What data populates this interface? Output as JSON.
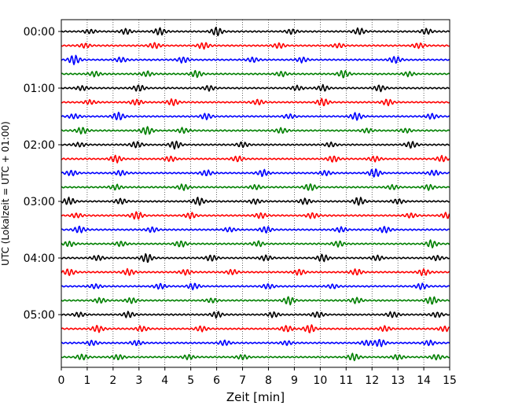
{
  "chart_data": {
    "type": "line",
    "title": "",
    "xlabel": "Zeit  [min]",
    "ylabel": "UTC (Lokalzeit = UTC + 01:00)",
    "xlim": [
      0,
      15
    ],
    "x_ticks": [
      "0",
      "1",
      "2",
      "3",
      "4",
      "5",
      "6",
      "7",
      "8",
      "9",
      "10",
      "11",
      "12",
      "13",
      "14",
      "15"
    ],
    "y_tick_labels": [
      "00:00",
      "01:00",
      "02:00",
      "03:00",
      "04:00",
      "05:00"
    ],
    "grid": "vertical dotted lines at each minute",
    "trace_interval_minutes": 15,
    "trace_count": 24,
    "trace_colors": [
      "#000000",
      "#ff0000",
      "#0000ff",
      "#008000"
    ],
    "traces": [
      {
        "start": "00:00",
        "color": "#000000",
        "bursts": [
          [
            1.1,
            0.3
          ],
          [
            2.5,
            0.35
          ],
          [
            3.8,
            0.5
          ],
          [
            6.0,
            0.6
          ],
          [
            8.9,
            0.35
          ],
          [
            11.5,
            0.45
          ],
          [
            14.1,
            0.4
          ]
        ]
      },
      {
        "start": "00:15",
        "color": "#ff0000",
        "bursts": [
          [
            0.9,
            0.3
          ],
          [
            3.6,
            0.4
          ],
          [
            5.5,
            0.45
          ],
          [
            8.4,
            0.35
          ],
          [
            10.7,
            0.3
          ],
          [
            13.8,
            0.35
          ]
        ]
      },
      {
        "start": "00:30",
        "color": "#0000ff",
        "bursts": [
          [
            0.5,
            0.65
          ],
          [
            2.3,
            0.35
          ],
          [
            4.7,
            0.4
          ],
          [
            7.4,
            0.35
          ],
          [
            9.3,
            0.35
          ],
          [
            12.9,
            0.45
          ]
        ]
      },
      {
        "start": "00:45",
        "color": "#008000",
        "bursts": [
          [
            1.3,
            0.35
          ],
          [
            3.3,
            0.35
          ],
          [
            5.2,
            0.5
          ],
          [
            8.5,
            0.35
          ],
          [
            10.9,
            0.5
          ],
          [
            13.4,
            0.3
          ]
        ]
      },
      {
        "start": "01:00",
        "color": "#000000",
        "bursts": [
          [
            0.8,
            0.3
          ],
          [
            3.0,
            0.45
          ],
          [
            5.7,
            0.35
          ],
          [
            9.1,
            0.3
          ],
          [
            10.1,
            0.4
          ],
          [
            12.3,
            0.45
          ]
        ]
      },
      {
        "start": "01:15",
        "color": "#ff0000",
        "bursts": [
          [
            1.1,
            0.3
          ],
          [
            2.9,
            0.4
          ],
          [
            4.3,
            0.45
          ],
          [
            7.6,
            0.35
          ],
          [
            10.1,
            0.55
          ],
          [
            12.6,
            0.4
          ]
        ]
      },
      {
        "start": "01:30",
        "color": "#0000ff",
        "bursts": [
          [
            0.5,
            0.3
          ],
          [
            2.2,
            0.55
          ],
          [
            5.6,
            0.4
          ],
          [
            8.8,
            0.3
          ],
          [
            11.4,
            0.5
          ],
          [
            14.3,
            0.35
          ]
        ]
      },
      {
        "start": "01:45",
        "color": "#008000",
        "bursts": [
          [
            0.8,
            0.45
          ],
          [
            3.3,
            0.6
          ],
          [
            4.7,
            0.35
          ],
          [
            8.5,
            0.35
          ],
          [
            11.8,
            0.3
          ],
          [
            13.3,
            0.3
          ]
        ]
      },
      {
        "start": "02:00",
        "color": "#000000",
        "bursts": [
          [
            0.7,
            0.3
          ],
          [
            2.9,
            0.45
          ],
          [
            4.4,
            0.55
          ],
          [
            7.0,
            0.35
          ],
          [
            10.4,
            0.3
          ],
          [
            13.5,
            0.45
          ]
        ]
      },
      {
        "start": "02:15",
        "color": "#ff0000",
        "bursts": [
          [
            2.1,
            0.5
          ],
          [
            4.2,
            0.35
          ],
          [
            6.8,
            0.4
          ],
          [
            10.5,
            0.45
          ],
          [
            12.1,
            0.35
          ],
          [
            14.7,
            0.4
          ]
        ]
      },
      {
        "start": "02:30",
        "color": "#0000ff",
        "bursts": [
          [
            0.4,
            0.4
          ],
          [
            2.3,
            0.35
          ],
          [
            5.6,
            0.4
          ],
          [
            7.8,
            0.45
          ],
          [
            10.2,
            0.35
          ],
          [
            12.1,
            0.6
          ],
          [
            14.4,
            0.35
          ]
        ]
      },
      {
        "start": "02:45",
        "color": "#008000",
        "bursts": [
          [
            2.1,
            0.35
          ],
          [
            4.7,
            0.4
          ],
          [
            7.5,
            0.3
          ],
          [
            9.6,
            0.5
          ],
          [
            12.8,
            0.3
          ],
          [
            14.2,
            0.35
          ]
        ]
      },
      {
        "start": "03:00",
        "color": "#000000",
        "bursts": [
          [
            0.3,
            0.5
          ],
          [
            2.3,
            0.4
          ],
          [
            5.3,
            0.55
          ],
          [
            7.5,
            0.35
          ],
          [
            9.4,
            0.4
          ],
          [
            11.5,
            0.55
          ],
          [
            13.0,
            0.35
          ]
        ]
      },
      {
        "start": "03:15",
        "color": "#ff0000",
        "bursts": [
          [
            0.6,
            0.3
          ],
          [
            2.9,
            0.55
          ],
          [
            5.0,
            0.4
          ],
          [
            7.7,
            0.35
          ],
          [
            9.7,
            0.4
          ],
          [
            13.5,
            0.35
          ],
          [
            14.9,
            0.4
          ]
        ]
      },
      {
        "start": "03:30",
        "color": "#0000ff",
        "bursts": [
          [
            0.7,
            0.45
          ],
          [
            3.5,
            0.35
          ],
          [
            6.5,
            0.3
          ],
          [
            7.9,
            0.45
          ],
          [
            10.8,
            0.35
          ],
          [
            12.5,
            0.4
          ]
        ]
      },
      {
        "start": "03:45",
        "color": "#008000",
        "bursts": [
          [
            0.3,
            0.35
          ],
          [
            2.3,
            0.35
          ],
          [
            4.6,
            0.45
          ],
          [
            7.6,
            0.35
          ],
          [
            10.7,
            0.4
          ],
          [
            14.3,
            0.5
          ]
        ]
      },
      {
        "start": "04:00",
        "color": "#000000",
        "bursts": [
          [
            1.4,
            0.35
          ],
          [
            3.3,
            0.6
          ],
          [
            5.8,
            0.4
          ],
          [
            7.9,
            0.35
          ],
          [
            10.1,
            0.5
          ],
          [
            12.2,
            0.35
          ],
          [
            14.5,
            0.35
          ]
        ]
      },
      {
        "start": "04:15",
        "color": "#ff0000",
        "bursts": [
          [
            0.3,
            0.45
          ],
          [
            2.6,
            0.45
          ],
          [
            4.8,
            0.35
          ],
          [
            6.6,
            0.35
          ],
          [
            9.2,
            0.4
          ],
          [
            11.4,
            0.4
          ],
          [
            14.0,
            0.45
          ]
        ]
      },
      {
        "start": "04:30",
        "color": "#0000ff",
        "bursts": [
          [
            1.3,
            0.3
          ],
          [
            3.8,
            0.35
          ],
          [
            5.1,
            0.4
          ],
          [
            8.0,
            0.35
          ],
          [
            10.5,
            0.3
          ],
          [
            13.9,
            0.4
          ]
        ]
      },
      {
        "start": "04:45",
        "color": "#008000",
        "bursts": [
          [
            1.5,
            0.35
          ],
          [
            2.7,
            0.35
          ],
          [
            5.8,
            0.3
          ],
          [
            8.8,
            0.55
          ],
          [
            11.4,
            0.4
          ],
          [
            14.3,
            0.55
          ]
        ]
      },
      {
        "start": "05:00",
        "color": "#000000",
        "bursts": [
          [
            0.7,
            0.3
          ],
          [
            2.6,
            0.4
          ],
          [
            6.0,
            0.4
          ],
          [
            8.2,
            0.35
          ],
          [
            9.9,
            0.4
          ],
          [
            12.8,
            0.4
          ],
          [
            14.5,
            0.35
          ]
        ]
      },
      {
        "start": "05:15",
        "color": "#ff0000",
        "bursts": [
          [
            1.4,
            0.45
          ],
          [
            3.1,
            0.35
          ],
          [
            5.4,
            0.35
          ],
          [
            8.7,
            0.45
          ],
          [
            9.6,
            0.55
          ],
          [
            12.5,
            0.35
          ],
          [
            14.8,
            0.35
          ]
        ]
      },
      {
        "start": "05:30",
        "color": "#0000ff",
        "bursts": [
          [
            1.2,
            0.35
          ],
          [
            2.9,
            0.35
          ],
          [
            6.3,
            0.35
          ],
          [
            8.7,
            0.3
          ],
          [
            11.8,
            0.35
          ],
          [
            12.3,
            0.5
          ],
          [
            14.2,
            0.35
          ]
        ]
      },
      {
        "start": "05:45",
        "color": "#008000",
        "bursts": [
          [
            0.8,
            0.35
          ],
          [
            2.2,
            0.35
          ],
          [
            4.9,
            0.3
          ],
          [
            7.0,
            0.3
          ],
          [
            11.3,
            0.5
          ],
          [
            13.0,
            0.35
          ],
          [
            14.5,
            0.35
          ]
        ]
      }
    ]
  }
}
